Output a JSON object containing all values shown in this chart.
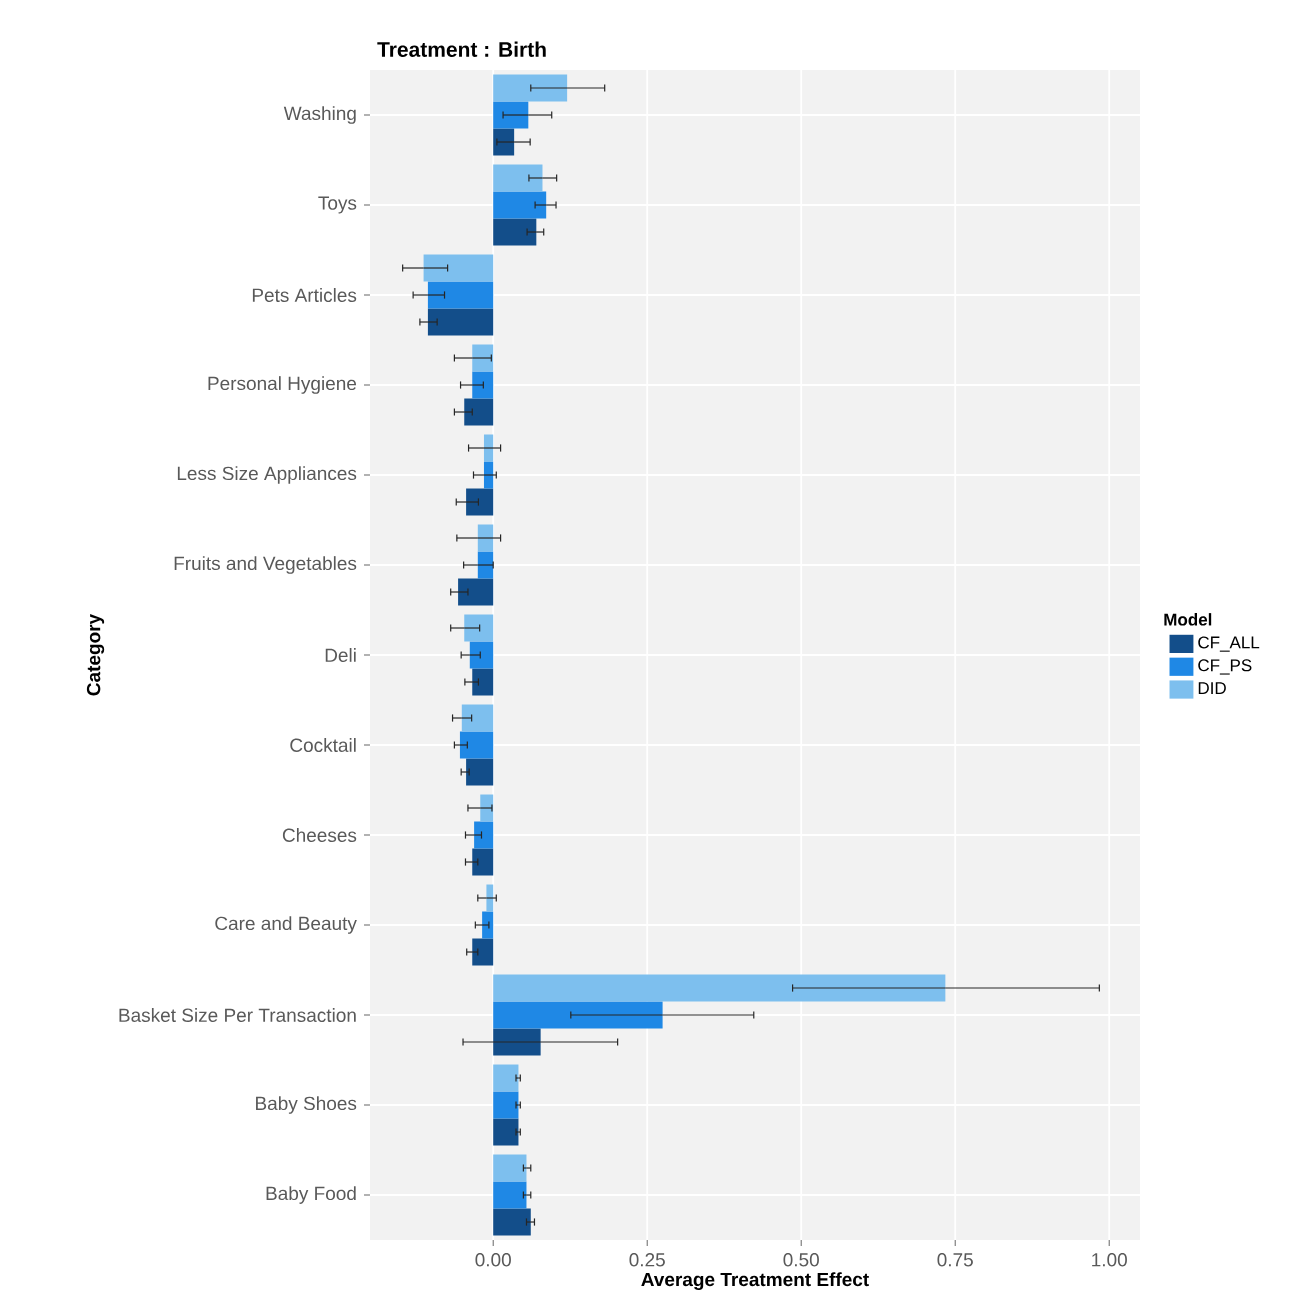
{
  "chart_data": {
    "type": "bar",
    "orientation": "horizontal",
    "title": "Treatment : Birth",
    "xlabel": "Average Treatment Effect",
    "ylabel": "Category",
    "legend_title": "Model",
    "legend": "right",
    "grid": true,
    "categories": [
      "Washing",
      "Toys",
      "Pets Articles",
      "Personal Hygiene",
      "Less Size Appliances",
      "Fruits and Vegetables",
      "Deli",
      "Cocktail",
      "Cheeses",
      "Care and Beauty",
      "Basket Size Per Transaction",
      "Baby Shoes",
      "Baby Food"
    ],
    "xlim": [
      -0.2,
      1.05
    ],
    "xticks": [
      {
        "value": 0,
        "label": "0.00"
      },
      {
        "value": 0.25,
        "label": "0.25"
      },
      {
        "value": 0.5,
        "label": "0.50"
      },
      {
        "value": 0.75,
        "label": "0.75"
      },
      {
        "value": 1,
        "label": "1.00"
      }
    ],
    "series": [
      {
        "name": "CF_ALL",
        "color": "#134e8a",
        "values": [
          0.034,
          0.07,
          -0.106,
          -0.047,
          -0.044,
          -0.057,
          -0.034,
          -0.044,
          -0.034,
          -0.034,
          0.077,
          0.041,
          0.061
        ],
        "errors": [
          [
            0.006,
            0.06
          ],
          [
            0.055,
            0.082
          ],
          [
            -0.119,
            -0.091
          ],
          [
            -0.063,
            -0.034
          ],
          [
            -0.06,
            -0.024
          ],
          [
            -0.069,
            -0.041
          ],
          [
            -0.046,
            -0.024
          ],
          [
            -0.052,
            -0.039
          ],
          [
            -0.045,
            -0.025
          ],
          [
            -0.043,
            -0.025
          ],
          [
            -0.049,
            0.202
          ],
          [
            0.037,
            0.044
          ],
          [
            0.054,
            0.067
          ]
        ]
      },
      {
        "name": "CF_PS",
        "color": "#1f88e5",
        "values": [
          0.057,
          0.086,
          -0.106,
          -0.034,
          -0.015,
          -0.025,
          -0.038,
          -0.054,
          -0.031,
          -0.018,
          0.275,
          0.041,
          0.054
        ],
        "errors": [
          [
            0.016,
            0.095
          ],
          [
            0.068,
            0.102
          ],
          [
            -0.13,
            -0.079
          ],
          [
            -0.053,
            -0.016
          ],
          [
            -0.032,
            0.005
          ],
          [
            -0.048,
            0.0
          ],
          [
            -0.052,
            -0.021
          ],
          [
            -0.063,
            -0.042
          ],
          [
            -0.045,
            -0.019
          ],
          [
            -0.029,
            -0.007
          ],
          [
            0.126,
            0.423
          ],
          [
            0.037,
            0.044
          ],
          [
            0.049,
            0.061
          ]
        ]
      },
      {
        "name": "DID",
        "color": "#7dbfee",
        "values": [
          0.12,
          0.08,
          -0.113,
          -0.034,
          -0.015,
          -0.025,
          -0.047,
          -0.051,
          -0.021,
          -0.011,
          0.734,
          0.041,
          0.054
        ],
        "errors": [
          [
            0.061,
            0.181
          ],
          [
            0.058,
            0.103
          ],
          [
            -0.147,
            -0.074
          ],
          [
            -0.063,
            -0.003
          ],
          [
            -0.04,
            0.012
          ],
          [
            -0.059,
            0.012
          ],
          [
            -0.069,
            -0.022
          ],
          [
            -0.066,
            -0.035
          ],
          [
            -0.041,
            -0.002
          ],
          [
            -0.025,
            0.005
          ],
          [
            0.486,
            0.984
          ],
          [
            0.037,
            0.044
          ],
          [
            0.049,
            0.061
          ]
        ]
      }
    ]
  }
}
